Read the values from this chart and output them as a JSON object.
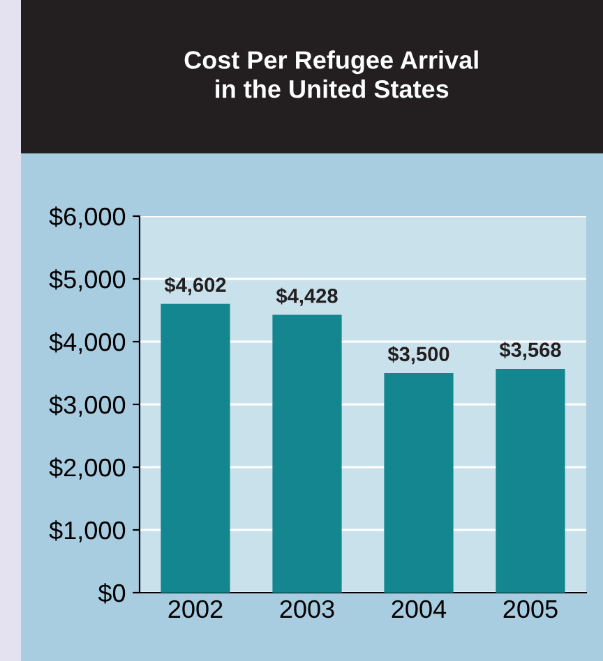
{
  "chart_data": {
    "type": "bar",
    "title": "Cost Per Refugee Arrival\nin the United States",
    "categories": [
      "2002",
      "2003",
      "2004",
      "2005"
    ],
    "values": [
      4602,
      4428,
      3500,
      3568
    ],
    "value_labels": [
      "$4,602",
      "$4,428",
      "$3,500",
      "$3,568"
    ],
    "color": "#13868f",
    "ylim": [
      0,
      6000
    ],
    "yticks": [
      {
        "value": 0,
        "label": "$0"
      },
      {
        "value": 1000,
        "label": "$1,000"
      },
      {
        "value": 2000,
        "label": "$2,000"
      },
      {
        "value": 3000,
        "label": "$3,000"
      },
      {
        "value": 4000,
        "label": "$4,000"
      },
      {
        "value": 5000,
        "label": "$5,000"
      },
      {
        "value": 6000,
        "label": "$6,000"
      }
    ],
    "grid": "y"
  }
}
